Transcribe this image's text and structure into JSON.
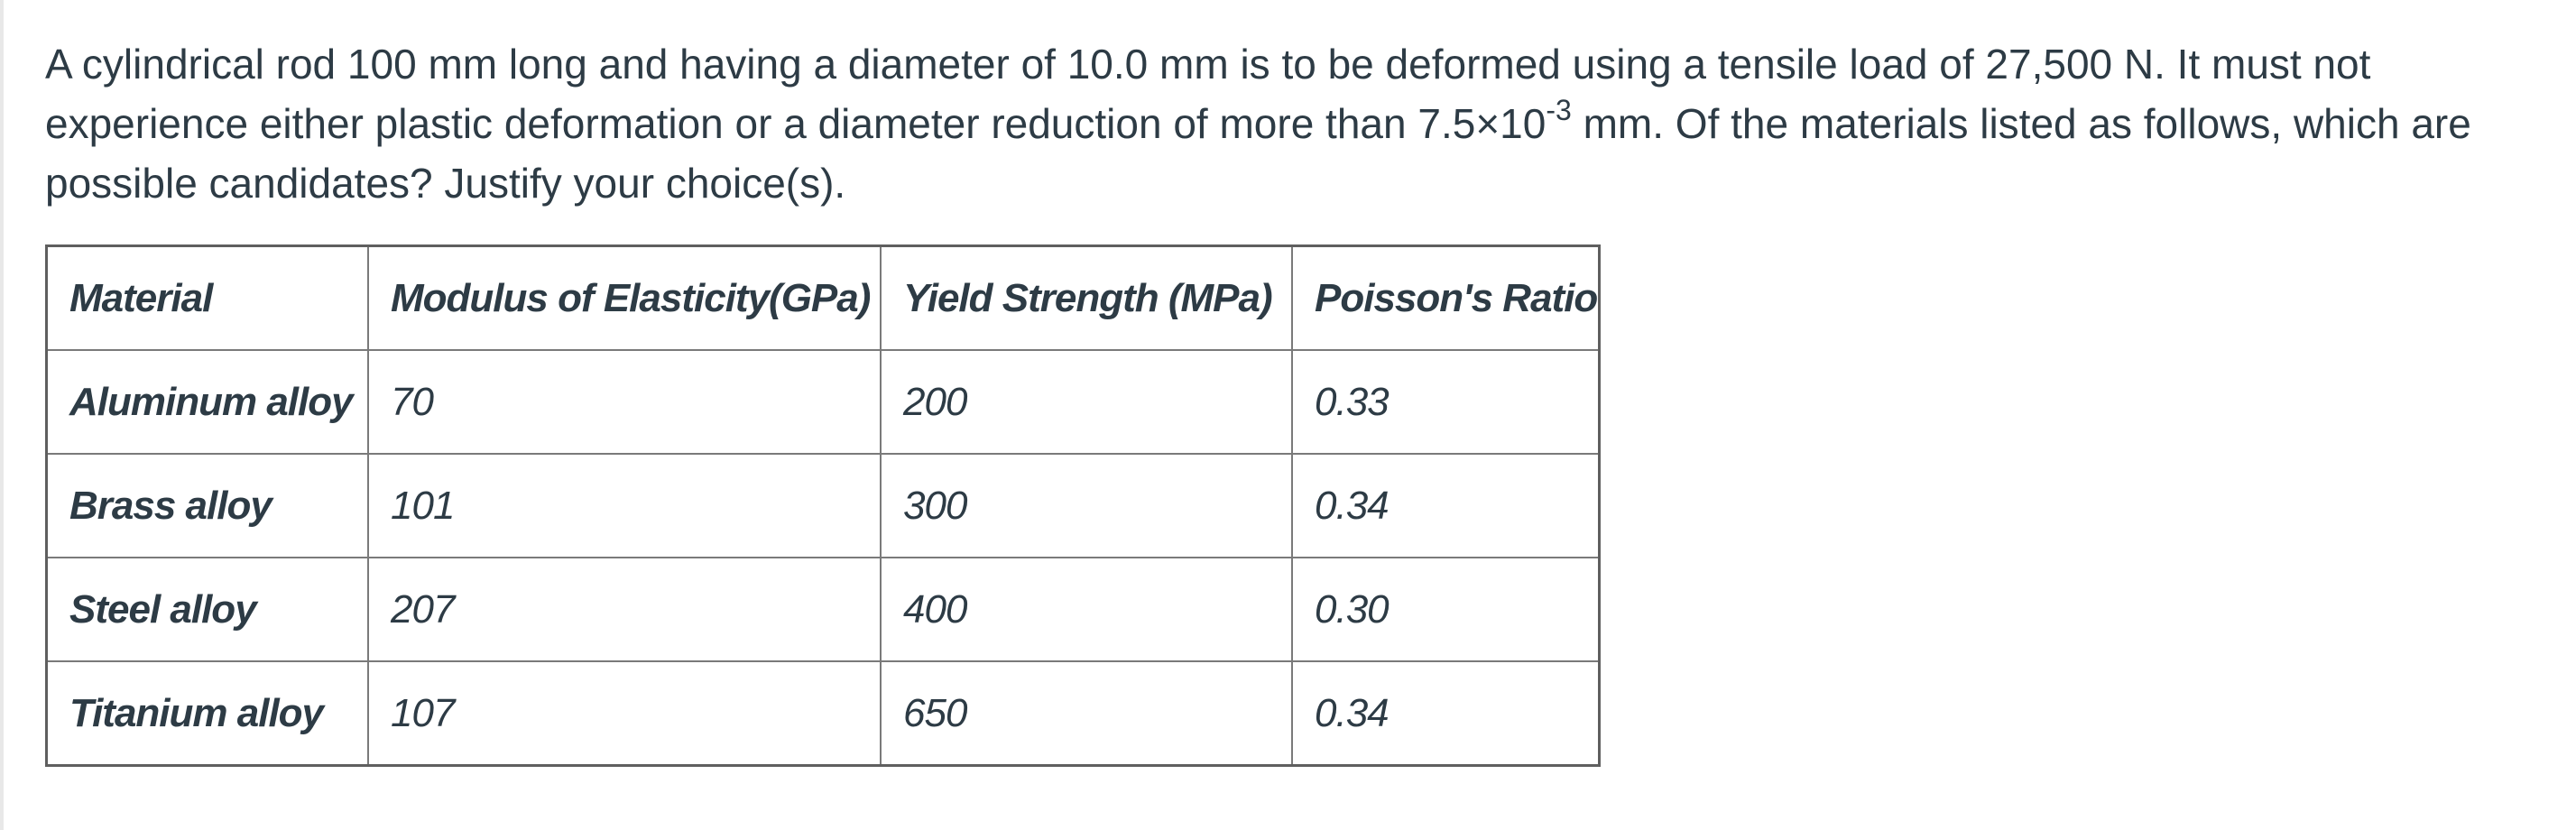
{
  "question": {
    "line_part1": "A cylindrical rod 100 mm long and having a diameter of 10.0 mm is to be deformed using a tensile load of 27,500 N. It must not experience either plastic deformation or a diameter reduction of more than 7.5×10",
    "exponent": "-3",
    "line_part2": " mm. Of the materials listed as follows, which are possible candidates? Justify your choice(s)."
  },
  "table": {
    "headers": [
      "Material",
      "Modulus of Elasticity(GPa)",
      "Yield Strength (MPa)",
      "Poisson's Ratio"
    ],
    "rows": [
      {
        "material": "Aluminum alloy",
        "modulus": "70",
        "yield": "200",
        "poisson": "0.33"
      },
      {
        "material": "Brass alloy",
        "modulus": "101",
        "yield": "300",
        "poisson": "0.34"
      },
      {
        "material": "Steel alloy",
        "modulus": "207",
        "yield": "400",
        "poisson": "0.30"
      },
      {
        "material": "Titanium alloy",
        "modulus": "107",
        "yield": "650",
        "poisson": "0.34"
      }
    ]
  }
}
